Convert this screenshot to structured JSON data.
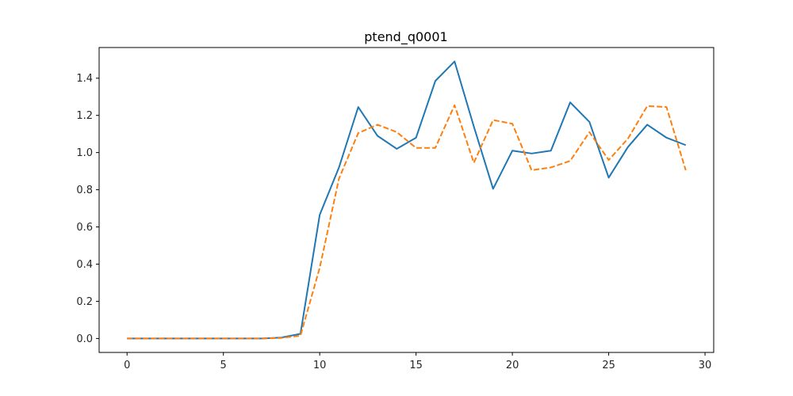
{
  "chart_data": {
    "type": "line",
    "title": "ptend_q0001",
    "xlabel": "",
    "ylabel": "",
    "xlim": [
      -1.45,
      30.45
    ],
    "ylim": [
      -0.075,
      1.565
    ],
    "xticks": [
      0,
      5,
      10,
      15,
      20,
      25,
      30
    ],
    "yticks": [
      0.0,
      0.2,
      0.4,
      0.6,
      0.8,
      1.0,
      1.2,
      1.4
    ],
    "grid": false,
    "legend": "none",
    "x": [
      0,
      1,
      2,
      3,
      4,
      5,
      6,
      7,
      8,
      9,
      10,
      11,
      12,
      13,
      14,
      15,
      16,
      17,
      18,
      19,
      20,
      21,
      22,
      23,
      24,
      25,
      26,
      27,
      28,
      29
    ],
    "series": [
      {
        "color": "#1f77b4",
        "dash": "solid",
        "values": [
          0,
          0,
          0,
          0,
          0,
          0,
          0,
          0,
          0.005,
          0.025,
          0.665,
          0.92,
          1.245,
          1.09,
          1.02,
          1.08,
          1.385,
          1.49,
          1.14,
          0.805,
          1.01,
          0.995,
          1.01,
          1.27,
          1.165,
          0.865,
          1.03,
          1.15,
          1.08,
          1.04
        ]
      },
      {
        "color": "#ff7f0e",
        "dash": "dashed",
        "values": [
          0,
          0,
          0,
          0,
          0,
          0,
          0,
          0,
          0.003,
          0.015,
          0.38,
          0.86,
          1.105,
          1.15,
          1.11,
          1.025,
          1.025,
          1.255,
          0.945,
          1.175,
          1.155,
          0.905,
          0.92,
          0.955,
          1.11,
          0.96,
          1.075,
          1.25,
          1.245,
          0.905
        ]
      }
    ]
  }
}
